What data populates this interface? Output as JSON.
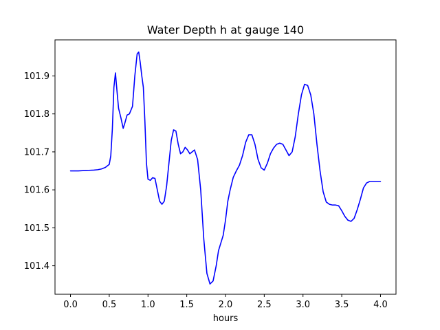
{
  "chart_data": {
    "type": "line",
    "title": "Water Depth h at gauge 140",
    "xlabel": "hours",
    "ylabel": "",
    "xlim": [
      -0.2,
      4.2
    ],
    "ylim": [
      101.325,
      101.995
    ],
    "x_ticks": [
      0.0,
      0.5,
      1.0,
      1.5,
      2.0,
      2.5,
      3.0,
      3.5,
      4.0
    ],
    "x_tick_labels": [
      "0.0",
      "0.5",
      "1.0",
      "1.5",
      "2.0",
      "2.5",
      "3.0",
      "3.5",
      "4.0"
    ],
    "y_ticks": [
      101.4,
      101.5,
      101.6,
      101.7,
      101.8,
      101.9
    ],
    "y_tick_labels": [
      "101.4",
      "101.5",
      "101.6",
      "101.7",
      "101.8",
      "101.9"
    ],
    "grid": false,
    "legend": "none",
    "series": [
      {
        "color": "#0000ff",
        "x": [
          0.0,
          0.1,
          0.2,
          0.3,
          0.35,
          0.4,
          0.45,
          0.5,
          0.52,
          0.54,
          0.56,
          0.58,
          0.6,
          0.62,
          0.65,
          0.68,
          0.7,
          0.73,
          0.76,
          0.8,
          0.83,
          0.86,
          0.88,
          0.9,
          0.92,
          0.94,
          0.96,
          0.98,
          1.0,
          1.03,
          1.06,
          1.09,
          1.12,
          1.15,
          1.18,
          1.21,
          1.24,
          1.27,
          1.3,
          1.33,
          1.36,
          1.39,
          1.42,
          1.45,
          1.48,
          1.51,
          1.54,
          1.57,
          1.6,
          1.64,
          1.68,
          1.72,
          1.76,
          1.8,
          1.84,
          1.88,
          1.91,
          1.94,
          1.97,
          2.0,
          2.03,
          2.06,
          2.1,
          2.14,
          2.18,
          2.22,
          2.26,
          2.3,
          2.34,
          2.38,
          2.42,
          2.46,
          2.5,
          2.54,
          2.58,
          2.62,
          2.66,
          2.7,
          2.74,
          2.78,
          2.82,
          2.86,
          2.9,
          2.94,
          2.98,
          3.02,
          3.06,
          3.1,
          3.14,
          3.18,
          3.22,
          3.26,
          3.3,
          3.34,
          3.38,
          3.42,
          3.46,
          3.5,
          3.54,
          3.58,
          3.62,
          3.66,
          3.7,
          3.74,
          3.78,
          3.82,
          3.86,
          3.9,
          3.94,
          3.97,
          4.0
        ],
        "y": [
          101.65,
          101.65,
          101.651,
          101.652,
          101.653,
          101.655,
          101.659,
          101.667,
          101.69,
          101.76,
          101.87,
          101.908,
          101.86,
          101.815,
          101.79,
          101.762,
          101.775,
          101.797,
          101.8,
          101.82,
          101.9,
          101.958,
          101.963,
          101.935,
          101.9,
          101.87,
          101.78,
          101.67,
          101.628,
          101.625,
          101.632,
          101.63,
          101.6,
          101.57,
          101.562,
          101.57,
          101.61,
          101.67,
          101.73,
          101.758,
          101.755,
          101.72,
          101.695,
          101.7,
          101.712,
          101.705,
          101.695,
          101.7,
          101.705,
          101.68,
          101.6,
          101.47,
          101.38,
          101.352,
          101.36,
          101.4,
          101.44,
          101.46,
          101.48,
          101.52,
          101.57,
          101.6,
          101.633,
          101.65,
          101.665,
          101.69,
          101.725,
          101.745,
          101.745,
          101.72,
          101.68,
          101.658,
          101.652,
          101.67,
          101.695,
          101.71,
          101.72,
          101.723,
          101.72,
          101.705,
          101.69,
          101.7,
          101.74,
          101.8,
          101.85,
          101.878,
          101.875,
          101.85,
          101.8,
          101.72,
          101.65,
          101.595,
          101.568,
          101.562,
          101.56,
          101.56,
          101.558,
          101.545,
          101.53,
          101.52,
          101.517,
          101.525,
          101.548,
          101.575,
          101.605,
          101.618,
          101.622,
          101.622,
          101.622,
          101.622,
          101.622
        ]
      }
    ]
  }
}
